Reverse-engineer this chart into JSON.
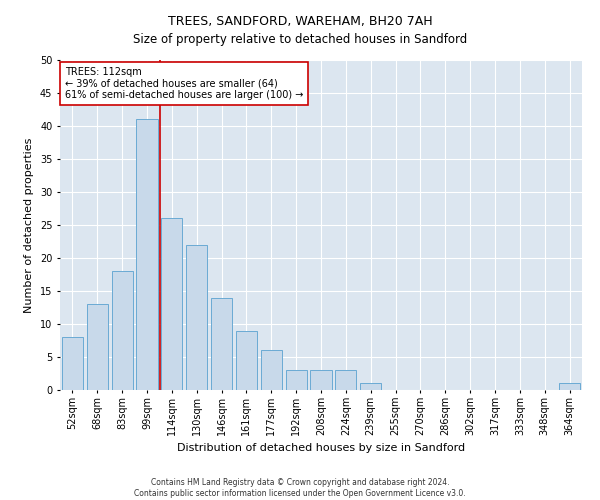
{
  "title": "TREES, SANDFORD, WAREHAM, BH20 7AH",
  "subtitle": "Size of property relative to detached houses in Sandford",
  "xlabel": "Distribution of detached houses by size in Sandford",
  "ylabel": "Number of detached properties",
  "bar_labels": [
    "52sqm",
    "68sqm",
    "83sqm",
    "99sqm",
    "114sqm",
    "130sqm",
    "146sqm",
    "161sqm",
    "177sqm",
    "192sqm",
    "208sqm",
    "224sqm",
    "239sqm",
    "255sqm",
    "270sqm",
    "286sqm",
    "302sqm",
    "317sqm",
    "333sqm",
    "348sqm",
    "364sqm"
  ],
  "bar_values": [
    8,
    13,
    18,
    41,
    26,
    22,
    14,
    9,
    6,
    3,
    3,
    3,
    1,
    0,
    0,
    0,
    0,
    0,
    0,
    0,
    1
  ],
  "bar_color": "#c8d9ea",
  "bar_edge_color": "#6aaad4",
  "property_label": "TREES: 112sqm",
  "annotation_line1": "← 39% of detached houses are smaller (64)",
  "annotation_line2": "61% of semi-detached houses are larger (100) →",
  "vline_color": "#cc0000",
  "vline_x": 3.525,
  "ylim": [
    0,
    50
  ],
  "yticks": [
    0,
    5,
    10,
    15,
    20,
    25,
    30,
    35,
    40,
    45,
    50
  ],
  "fig_bg_color": "#ffffff",
  "plot_bg_color": "#dce6f0",
  "grid_color": "#ffffff",
  "footer_line1": "Contains HM Land Registry data © Crown copyright and database right 2024.",
  "footer_line2": "Contains public sector information licensed under the Open Government Licence v3.0.",
  "annotation_box_facecolor": "#ffffff",
  "annotation_box_edgecolor": "#cc0000",
  "title_fontsize": 9,
  "subtitle_fontsize": 8.5,
  "ylabel_fontsize": 8,
  "xlabel_fontsize": 8,
  "tick_fontsize": 7,
  "annotation_fontsize": 7,
  "footer_fontsize": 5.5
}
